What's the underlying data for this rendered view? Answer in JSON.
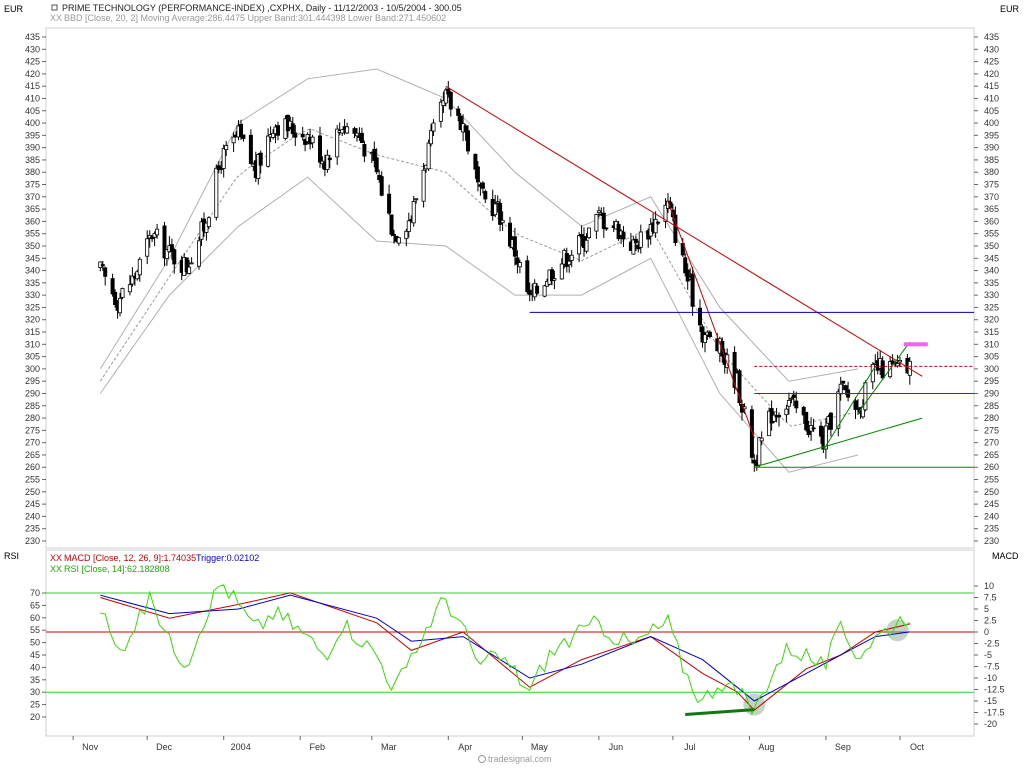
{
  "header": {
    "currency_left": "EUR",
    "currency_right": "EUR",
    "instrument": "PRIME TECHNOLOGY (PERFORMANCE-INDEX) ,CXPHX, Daily - 11/12/2003 - 10/5/2004 - 300.05",
    "bbd_legend": "BBD [Close, 20, 2] Moving Average:286.4475 Upper Band:301.444398 Lower Band:271.450602",
    "rsi_label_left": "RSI",
    "macd_label_right": "MACD",
    "macd_legend": "MACD [Close, 12, 26, 9]:1.74035",
    "macd_trigger": "Trigger:0.02102",
    "rsi_legend": "RSI [Close, 14]:62.182808",
    "footer": "tradesignal.com"
  },
  "colors": {
    "candle": "#000000",
    "bands": "#b0b0b0",
    "moving_average": "#9a9a9a",
    "red_trendline": "#cc0000",
    "blue_support": "#0000aa",
    "green_trendline": "#008800",
    "pink_target": "#ee66ee",
    "macd_line": "#cc0000",
    "macd_trigger": "#0000cc",
    "rsi_line": "#33dd00",
    "rsi_levels": "#33cc33",
    "zero_line": "#cc0000"
  },
  "chart_data": [
    {
      "type": "candlestick",
      "title": "PRIME TECHNOLOGY (PERFORMANCE-INDEX) ,CXPHX, Daily",
      "ylabel": "EUR",
      "ylim": [
        230,
        435
      ],
      "y_ticks": [
        230,
        235,
        240,
        245,
        250,
        255,
        260,
        265,
        270,
        275,
        280,
        285,
        290,
        295,
        300,
        305,
        310,
        315,
        320,
        325,
        330,
        335,
        340,
        345,
        350,
        355,
        360,
        365,
        370,
        375,
        380,
        385,
        390,
        395,
        400,
        405,
        410,
        415,
        420,
        425,
        430,
        435
      ],
      "x_ticks": [
        "Nov",
        "Dec",
        "2004",
        "Feb",
        "Mar",
        "Apr",
        "May",
        "Jun",
        "Jul",
        "Aug",
        "Sep",
        "Oct"
      ],
      "price_path": [
        [
          "2003-11-12",
          340
        ],
        [
          "2003-11-19",
          328
        ],
        [
          "2003-11-26",
          338
        ],
        [
          "2003-12-03",
          355
        ],
        [
          "2003-12-10",
          347
        ],
        [
          "2003-12-17",
          342
        ],
        [
          "2003-12-24",
          358
        ],
        [
          "2003-12-31",
          385
        ],
        [
          "2004-01-07",
          395
        ],
        [
          "2004-01-14",
          380
        ],
        [
          "2004-01-21",
          400
        ],
        [
          "2004-01-28",
          398
        ],
        [
          "2004-02-04",
          395
        ],
        [
          "2004-02-11",
          385
        ],
        [
          "2004-02-18",
          400
        ],
        [
          "2004-02-25",
          395
        ],
        [
          "2004-03-03",
          380
        ],
        [
          "2004-03-10",
          355
        ],
        [
          "2004-03-17",
          362
        ],
        [
          "2004-03-24",
          390
        ],
        [
          "2004-03-31",
          410
        ],
        [
          "2004-04-07",
          400
        ],
        [
          "2004-04-14",
          370
        ],
        [
          "2004-04-21",
          365
        ],
        [
          "2004-04-28",
          348
        ],
        [
          "2004-05-04",
          328
        ],
        [
          "2004-05-11",
          338
        ],
        [
          "2004-05-18",
          345
        ],
        [
          "2004-05-25",
          352
        ],
        [
          "2004-06-01",
          362
        ],
        [
          "2004-06-08",
          358
        ],
        [
          "2004-06-15",
          350
        ],
        [
          "2004-06-22",
          358
        ],
        [
          "2004-06-29",
          367
        ],
        [
          "2004-07-06",
          340
        ],
        [
          "2004-07-13",
          315
        ],
        [
          "2004-07-20",
          308
        ],
        [
          "2004-07-27",
          295
        ],
        [
          "2004-08-03",
          262
        ],
        [
          "2004-08-10",
          282
        ],
        [
          "2004-08-17",
          287
        ],
        [
          "2004-08-24",
          278
        ],
        [
          "2004-08-31",
          270
        ],
        [
          "2004-09-07",
          292
        ],
        [
          "2004-09-14",
          284
        ],
        [
          "2004-09-21",
          300
        ],
        [
          "2004-10-05",
          300
        ]
      ],
      "upper_band_path": [
        [
          "2003-11-12",
          300
        ],
        [
          "2003-12-10",
          345
        ],
        [
          "2004-01-07",
          400
        ],
        [
          "2004-02-04",
          418
        ],
        [
          "2004-03-03",
          422
        ],
        [
          "2004-03-31",
          410
        ],
        [
          "2004-04-28",
          380
        ],
        [
          "2004-05-25",
          358
        ],
        [
          "2004-06-22",
          370
        ],
        [
          "2004-07-20",
          325
        ],
        [
          "2004-08-17",
          295
        ],
        [
          "2004-09-14",
          300
        ]
      ],
      "lower_band_path": [
        [
          "2003-11-12",
          290
        ],
        [
          "2003-12-10",
          330
        ],
        [
          "2004-01-07",
          358
        ],
        [
          "2004-02-04",
          378
        ],
        [
          "2004-03-03",
          352
        ],
        [
          "2004-03-31",
          350
        ],
        [
          "2004-04-28",
          330
        ],
        [
          "2004-05-25",
          330
        ],
        [
          "2004-06-22",
          345
        ],
        [
          "2004-07-20",
          290
        ],
        [
          "2004-08-17",
          258
        ],
        [
          "2004-09-14",
          265
        ]
      ],
      "moving_average_last": 286.4475,
      "upper_band_last": 301.444398,
      "lower_band_last": 271.450602,
      "annotations": [
        {
          "kind": "trendline",
          "color": "red",
          "from": [
            "2004-03-31",
            415
          ],
          "to": [
            "2004-10-10",
            297
          ]
        },
        {
          "kind": "trendline",
          "color": "red",
          "from": [
            "2004-06-29",
            368
          ],
          "to": [
            "2004-08-03",
            272
          ]
        },
        {
          "kind": "horizontal",
          "color": "blue",
          "value": 323,
          "from": "2004-05-04"
        },
        {
          "kind": "horizontal",
          "color": "green",
          "value": 260,
          "from": "2004-08-03"
        },
        {
          "kind": "trendline",
          "color": "green",
          "from": [
            "2004-08-03",
            260
          ],
          "to": [
            "2004-10-10",
            280
          ]
        },
        {
          "kind": "trendline",
          "color": "green",
          "from": [
            "2004-08-31",
            267
          ],
          "to": [
            "2004-09-21",
            301
          ]
        },
        {
          "kind": "trendline",
          "color": "green",
          "from": [
            "2004-09-14",
            282
          ],
          "to": [
            "2004-10-05",
            311
          ]
        },
        {
          "kind": "horizontal",
          "color": "red",
          "value": 290,
          "from": "2004-08-03"
        },
        {
          "kind": "horizontal",
          "color": "red",
          "style": "dashed",
          "value": 301,
          "from": "2004-08-03"
        },
        {
          "kind": "target",
          "color": "pink",
          "value": 310,
          "at": "2004-10-05"
        }
      ]
    },
    {
      "type": "line",
      "title": "MACD [Close, 12, 26, 9] / RSI [Close, 14]",
      "left_axis": {
        "label": "RSI",
        "ylim": [
          15,
          75
        ],
        "ticks": [
          20,
          25,
          30,
          35,
          40,
          45,
          50,
          55,
          60,
          65,
          70
        ]
      },
      "right_axis": {
        "label": "MACD",
        "ylim": [
          -20,
          10
        ],
        "ticks": [
          10,
          7.5,
          5,
          2.5,
          0,
          -2.5,
          -5,
          -7.5,
          -10,
          -12.5,
          -15,
          -17.5,
          -20
        ]
      },
      "rsi_levels": [
        70,
        30
      ],
      "series": [
        {
          "name": "MACD",
          "value_last": 1.74035,
          "points": [
            [
              "2003-11-12",
              7.5
            ],
            [
              "2003-12-10",
              3
            ],
            [
              "2004-01-07",
              6
            ],
            [
              "2004-01-28",
              8.5
            ],
            [
              "2004-03-03",
              2
            ],
            [
              "2004-03-17",
              -4
            ],
            [
              "2004-04-07",
              0
            ],
            [
              "2004-05-04",
              -12
            ],
            [
              "2004-05-25",
              -6
            ],
            [
              "2004-06-22",
              -1
            ],
            [
              "2004-07-13",
              -9
            ],
            [
              "2004-07-27",
              -13
            ],
            [
              "2004-08-03",
              -17
            ],
            [
              "2004-08-24",
              -8
            ],
            [
              "2004-09-07",
              -5
            ],
            [
              "2004-09-21",
              0
            ],
            [
              "2004-10-05",
              1.74
            ]
          ]
        },
        {
          "name": "Trigger",
          "value_last": 0.02102,
          "points": [
            [
              "2003-11-12",
              8
            ],
            [
              "2003-12-10",
              4
            ],
            [
              "2004-01-07",
              5
            ],
            [
              "2004-01-28",
              8
            ],
            [
              "2004-03-03",
              3
            ],
            [
              "2004-03-17",
              -2
            ],
            [
              "2004-04-07",
              -1
            ],
            [
              "2004-05-04",
              -10
            ],
            [
              "2004-05-25",
              -7
            ],
            [
              "2004-06-22",
              -1
            ],
            [
              "2004-07-13",
              -6
            ],
            [
              "2004-07-27",
              -12
            ],
            [
              "2004-08-03",
              -15
            ],
            [
              "2004-08-24",
              -9
            ],
            [
              "2004-09-07",
              -5
            ],
            [
              "2004-09-21",
              -1
            ],
            [
              "2004-10-05",
              0.02
            ]
          ]
        },
        {
          "name": "RSI",
          "value_last": 62.182808,
          "points": [
            [
              "2003-11-12",
              65
            ],
            [
              "2003-11-19",
              45
            ],
            [
              "2003-11-26",
              58
            ],
            [
              "2003-12-03",
              68
            ],
            [
              "2003-12-10",
              50
            ],
            [
              "2003-12-17",
              42
            ],
            [
              "2003-12-24",
              60
            ],
            [
              "2003-12-31",
              75
            ],
            [
              "2004-01-07",
              65
            ],
            [
              "2004-01-14",
              55
            ],
            [
              "2004-01-21",
              62
            ],
            [
              "2004-01-28",
              58
            ],
            [
              "2004-02-04",
              52
            ],
            [
              "2004-02-11",
              45
            ],
            [
              "2004-02-18",
              58
            ],
            [
              "2004-02-25",
              52
            ],
            [
              "2004-03-03",
              45
            ],
            [
              "2004-03-10",
              32
            ],
            [
              "2004-03-17",
              42
            ],
            [
              "2004-03-24",
              58
            ],
            [
              "2004-03-31",
              68
            ],
            [
              "2004-04-07",
              55
            ],
            [
              "2004-04-14",
              40
            ],
            [
              "2004-04-21",
              45
            ],
            [
              "2004-04-28",
              38
            ],
            [
              "2004-05-04",
              30
            ],
            [
              "2004-05-11",
              44
            ],
            [
              "2004-05-18",
              50
            ],
            [
              "2004-05-25",
              54
            ],
            [
              "2004-06-01",
              58
            ],
            [
              "2004-06-08",
              52
            ],
            [
              "2004-06-15",
              49
            ],
            [
              "2004-06-22",
              54
            ],
            [
              "2004-06-29",
              58
            ],
            [
              "2004-07-06",
              38
            ],
            [
              "2004-07-13",
              26
            ],
            [
              "2004-07-20",
              35
            ],
            [
              "2004-07-27",
              30
            ],
            [
              "2004-08-03",
              22
            ],
            [
              "2004-08-10",
              38
            ],
            [
              "2004-08-17",
              48
            ],
            [
              "2004-08-24",
              45
            ],
            [
              "2004-08-31",
              40
            ],
            [
              "2004-09-07",
              55
            ],
            [
              "2004-09-14",
              45
            ],
            [
              "2004-09-21",
              52
            ],
            [
              "2004-10-05",
              62
            ]
          ]
        }
      ],
      "annotations": [
        {
          "kind": "divergence",
          "color": "green",
          "from": [
            "2004-07-06",
            21
          ],
          "to": [
            "2004-08-03",
            23
          ]
        },
        {
          "kind": "highlight",
          "at": [
            "2004-08-03",
            25
          ]
        },
        {
          "kind": "highlight",
          "at": [
            "2004-09-30",
            55
          ]
        }
      ]
    }
  ]
}
